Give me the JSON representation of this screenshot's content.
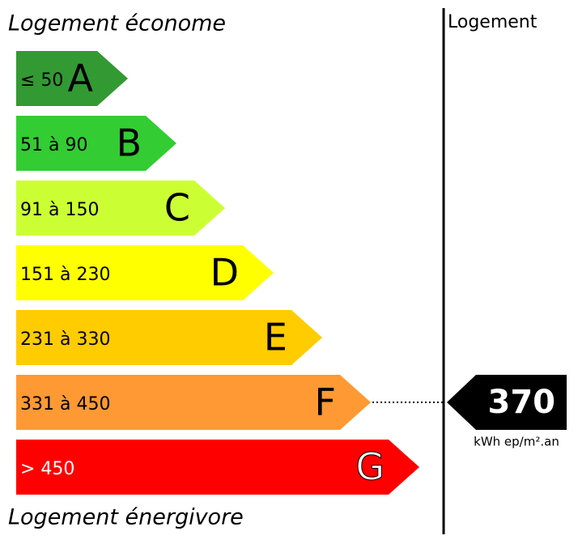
{
  "header": {
    "top": "Logement économe",
    "bottom": "Logement énergivore",
    "column": "Logement"
  },
  "bands": [
    {
      "range": "≤ 50",
      "letter": "A",
      "color": "#339933"
    },
    {
      "range": "51 à 90",
      "letter": "B",
      "color": "#33cc33"
    },
    {
      "range": "91 à 150",
      "letter": "C",
      "color": "#ccff33"
    },
    {
      "range": "151 à 230",
      "letter": "D",
      "color": "#ffff00"
    },
    {
      "range": "231 à 330",
      "letter": "E",
      "color": "#ffcc00"
    },
    {
      "range": "331 à 450",
      "letter": "F",
      "color": "#ff9933"
    },
    {
      "range": "> 450",
      "letter": "G",
      "color": "#ff0000"
    }
  ],
  "marker": {
    "value": 370,
    "unit": "kWh ep/m².an"
  }
}
